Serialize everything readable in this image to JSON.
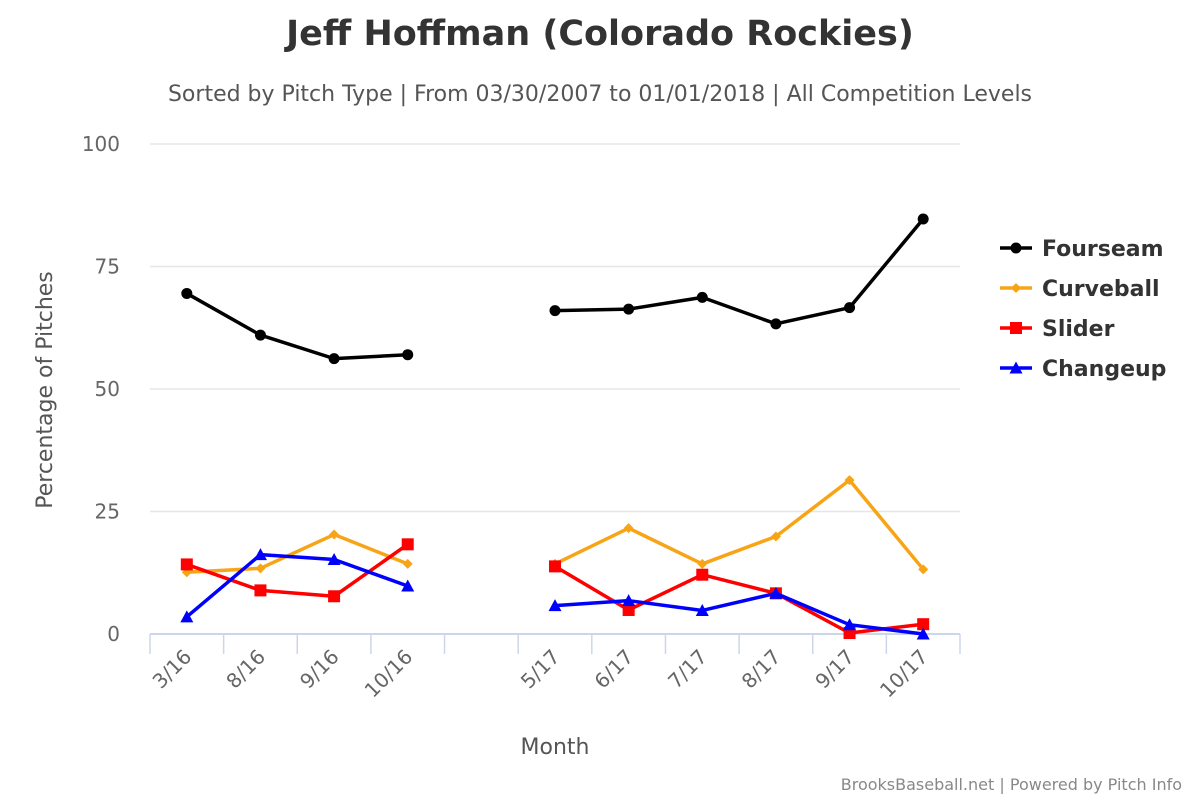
{
  "chart_data": {
    "type": "line",
    "title": "Jeff Hoffman (Colorado Rockies)",
    "subtitle": "Sorted by Pitch Type | From 03/30/2007 to 01/01/2018 | All Competition Levels",
    "xlabel": "Month",
    "ylabel": "Percentage of Pitches",
    "ylim": [
      0,
      100
    ],
    "yticks": [
      0,
      25,
      50,
      75,
      100
    ],
    "categories": [
      "3/16",
      "8/16",
      "9/16",
      "10/16",
      "",
      "5/17",
      "6/17",
      "7/17",
      "8/17",
      "9/17",
      "10/17"
    ],
    "grid": true,
    "legend_position": "right",
    "series": [
      {
        "name": "Fourseam",
        "color": "#000000",
        "marker": "circle",
        "values": [
          69.5,
          61.0,
          56.2,
          57.0,
          null,
          66.0,
          66.3,
          68.7,
          63.3,
          66.6,
          84.7
        ]
      },
      {
        "name": "Curveball",
        "color": "#f7a516",
        "marker": "diamond",
        "values": [
          12.6,
          13.4,
          20.3,
          14.3,
          null,
          14.3,
          21.6,
          14.3,
          19.9,
          31.4,
          13.2
        ]
      },
      {
        "name": "Slider",
        "color": "#ff0000",
        "marker": "square",
        "values": [
          14.2,
          8.9,
          7.7,
          18.3,
          null,
          13.8,
          4.9,
          12.1,
          8.3,
          0.2,
          2.0
        ]
      },
      {
        "name": "Changeup",
        "color": "#0000ff",
        "marker": "triangle",
        "values": [
          3.5,
          16.2,
          15.2,
          9.8,
          null,
          5.8,
          6.8,
          4.8,
          8.3,
          1.9,
          0.0
        ]
      }
    ]
  },
  "credits": {
    "site": "BrooksBaseball.net",
    "separator": "|",
    "powered": "Powered by Pitch Info"
  }
}
